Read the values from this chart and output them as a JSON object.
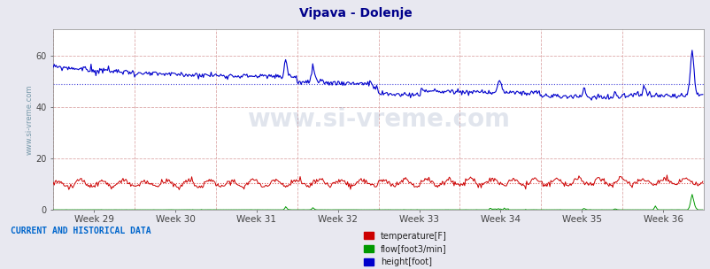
{
  "title": "Vipava - Dolenje",
  "title_color": "#00008B",
  "bg_color": "#e8e8f0",
  "plot_bg_color": "#ffffff",
  "x_tick_labels": [
    "Week 29",
    "Week 30",
    "Week 31",
    "Week 32",
    "Week 33",
    "Week 34",
    "Week 35",
    "Week 36"
  ],
  "y_ticks": [
    0,
    20,
    40,
    60
  ],
  "ylim": [
    0,
    70
  ],
  "xlim": [
    0,
    672
  ],
  "n_points": 672,
  "temp_color": "#cc0000",
  "flow_color": "#009900",
  "height_color": "#0000cc",
  "watermark": "www.si-vreme.com",
  "watermark_color": "#aaaacc",
  "legend_labels": [
    "temperature[F]",
    "flow[foot3/min]",
    "height[foot]"
  ],
  "legend_colors": [
    "#cc0000",
    "#009900",
    "#0000cc"
  ],
  "footer_text": "CURRENT AND HISTORICAL DATA",
  "footer_color": "#0066cc",
  "ylabel_text": "www.si-vreme.com",
  "ylabel_color": "#7799aa"
}
